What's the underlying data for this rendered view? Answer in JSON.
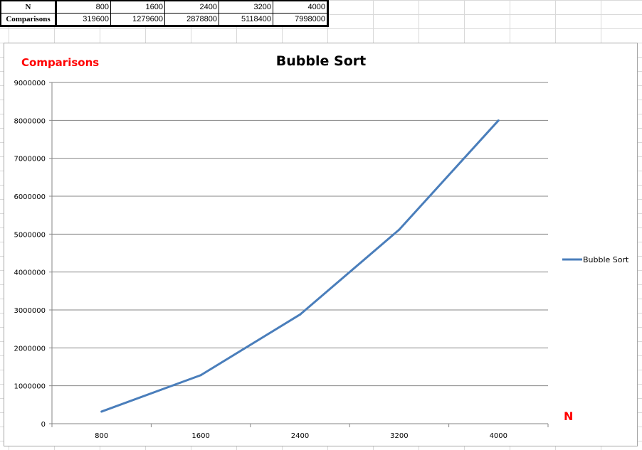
{
  "table": {
    "row_headers": [
      "N",
      "Comparisons"
    ],
    "n_values": [
      "800",
      "1600",
      "2400",
      "3200",
      "4000"
    ],
    "comparison_values": [
      "319600",
      "1279600",
      "2878800",
      "5118400",
      "7998000"
    ]
  },
  "chart_data": {
    "type": "line",
    "title": "Bubble Sort",
    "xlabel": "N",
    "ylabel": "Comparisons",
    "categories": [
      "800",
      "1600",
      "2400",
      "3200",
      "4000"
    ],
    "series": [
      {
        "name": "Bubble Sort",
        "values": [
          319600,
          1279600,
          2878800,
          5118400,
          7998000
        ],
        "color": "#4a7ebb"
      }
    ],
    "ylim": [
      0,
      9000000
    ],
    "yticks": [
      "0",
      "1000000",
      "2000000",
      "3000000",
      "4000000",
      "5000000",
      "6000000",
      "7000000",
      "8000000",
      "9000000"
    ],
    "grid": "horizontal",
    "legend": "right",
    "axis_label_color": "#ff0000"
  }
}
